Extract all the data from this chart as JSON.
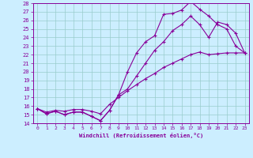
{
  "xlabel": "Windchill (Refroidissement éolien,°C)",
  "xlim": [
    -0.5,
    23.5
  ],
  "ylim": [
    14,
    28
  ],
  "yticks": [
    14,
    15,
    16,
    17,
    18,
    19,
    20,
    21,
    22,
    23,
    24,
    25,
    26,
    27,
    28
  ],
  "xticks": [
    0,
    1,
    2,
    3,
    4,
    5,
    6,
    7,
    8,
    9,
    10,
    11,
    12,
    13,
    14,
    15,
    16,
    17,
    18,
    19,
    20,
    21,
    22,
    23
  ],
  "line_color": "#880099",
  "bg_color": "#cceeff",
  "grid_color": "#99cccc",
  "line1_x": [
    0,
    1,
    2,
    3,
    4,
    5,
    6,
    7,
    8,
    9,
    10,
    11,
    12,
    13,
    14,
    15,
    16,
    17,
    18,
    19,
    20,
    21,
    22,
    23
  ],
  "line1_y": [
    15.7,
    15.1,
    15.4,
    15.0,
    15.3,
    15.3,
    14.8,
    14.3,
    15.5,
    17.3,
    20.0,
    22.2,
    23.5,
    24.2,
    26.7,
    26.8,
    27.2,
    28.2,
    27.3,
    26.5,
    25.5,
    25.0,
    23.0,
    22.2
  ],
  "line2_x": [
    0,
    1,
    2,
    3,
    4,
    5,
    6,
    7,
    8,
    9,
    10,
    11,
    12,
    13,
    14,
    15,
    16,
    17,
    18,
    19,
    20,
    21,
    22,
    23
  ],
  "line2_y": [
    15.7,
    15.1,
    15.4,
    15.0,
    15.3,
    15.3,
    14.8,
    14.3,
    15.5,
    17.3,
    18.0,
    19.5,
    21.0,
    22.5,
    23.5,
    24.8,
    25.5,
    26.5,
    25.5,
    24.0,
    25.8,
    25.5,
    24.5,
    22.2
  ],
  "line3_x": [
    0,
    1,
    2,
    3,
    4,
    5,
    6,
    7,
    8,
    9,
    10,
    11,
    12,
    13,
    14,
    15,
    16,
    17,
    18,
    19,
    20,
    21,
    22,
    23
  ],
  "line3_y": [
    15.7,
    15.3,
    15.5,
    15.4,
    15.6,
    15.6,
    15.4,
    15.1,
    16.2,
    17.0,
    17.8,
    18.5,
    19.2,
    19.8,
    20.5,
    21.0,
    21.5,
    22.0,
    22.3,
    22.0,
    22.1,
    22.2,
    22.2,
    22.2
  ]
}
